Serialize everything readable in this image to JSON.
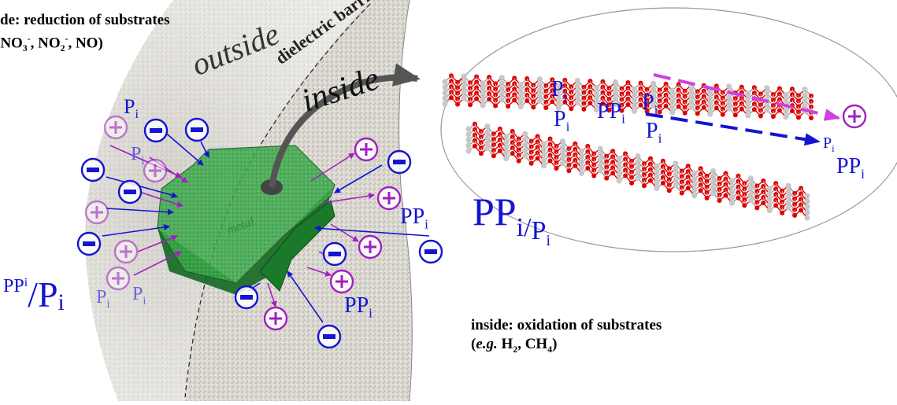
{
  "captions": {
    "outside_prefix": "de: reduction of substrates",
    "outside_species_open": "(",
    "outside_no3": "NO",
    "outside_no3_sub": "3",
    "outside_no3_sup": "-",
    "outside_no2": ", NO",
    "outside_no2_sub": "2",
    "outside_no2_sup": "-",
    "outside_no": ", NO)",
    "inside_line1": "inside: oxidation of substrates",
    "inside_open": "(",
    "inside_eg": "e.g.",
    "inside_h": " H",
    "inside_h_sub": "2",
    "inside_ch": ", CH",
    "inside_ch_sub": "4",
    "inside_close": ")"
  },
  "membrane": {
    "outside_label": "outside",
    "barrier_label": "dielectric barrier",
    "inside_label": "inside"
  },
  "particle": {
    "label": "metal"
  },
  "species": {
    "pi_main": "P",
    "pi_sub": "i",
    "ppi_main": "PP",
    "ppi_sub": "i",
    "ratio_left_top": "PP",
    "ratio_left_top_sub": "i",
    "ratio_slash": "/",
    "ratio_left_bottom": "P",
    "ratio_left_bottom_sub": "i",
    "ratio_mid_main": "PP",
    "ratio_mid_sub1": "i/",
    "ratio_mid_sub2": "P",
    "ratio_mid_sub3": "i"
  },
  "charges": {
    "plus": "+",
    "minus": "−"
  },
  "colors": {
    "phosphate_blue": "#1414d2",
    "cation_purple": "#a020c0",
    "particle_green": "#2a9a3a",
    "oxygen_red": "#e00000",
    "metal_gray": "#c8c8c8",
    "membrane_gray": "#d9d6cf"
  }
}
